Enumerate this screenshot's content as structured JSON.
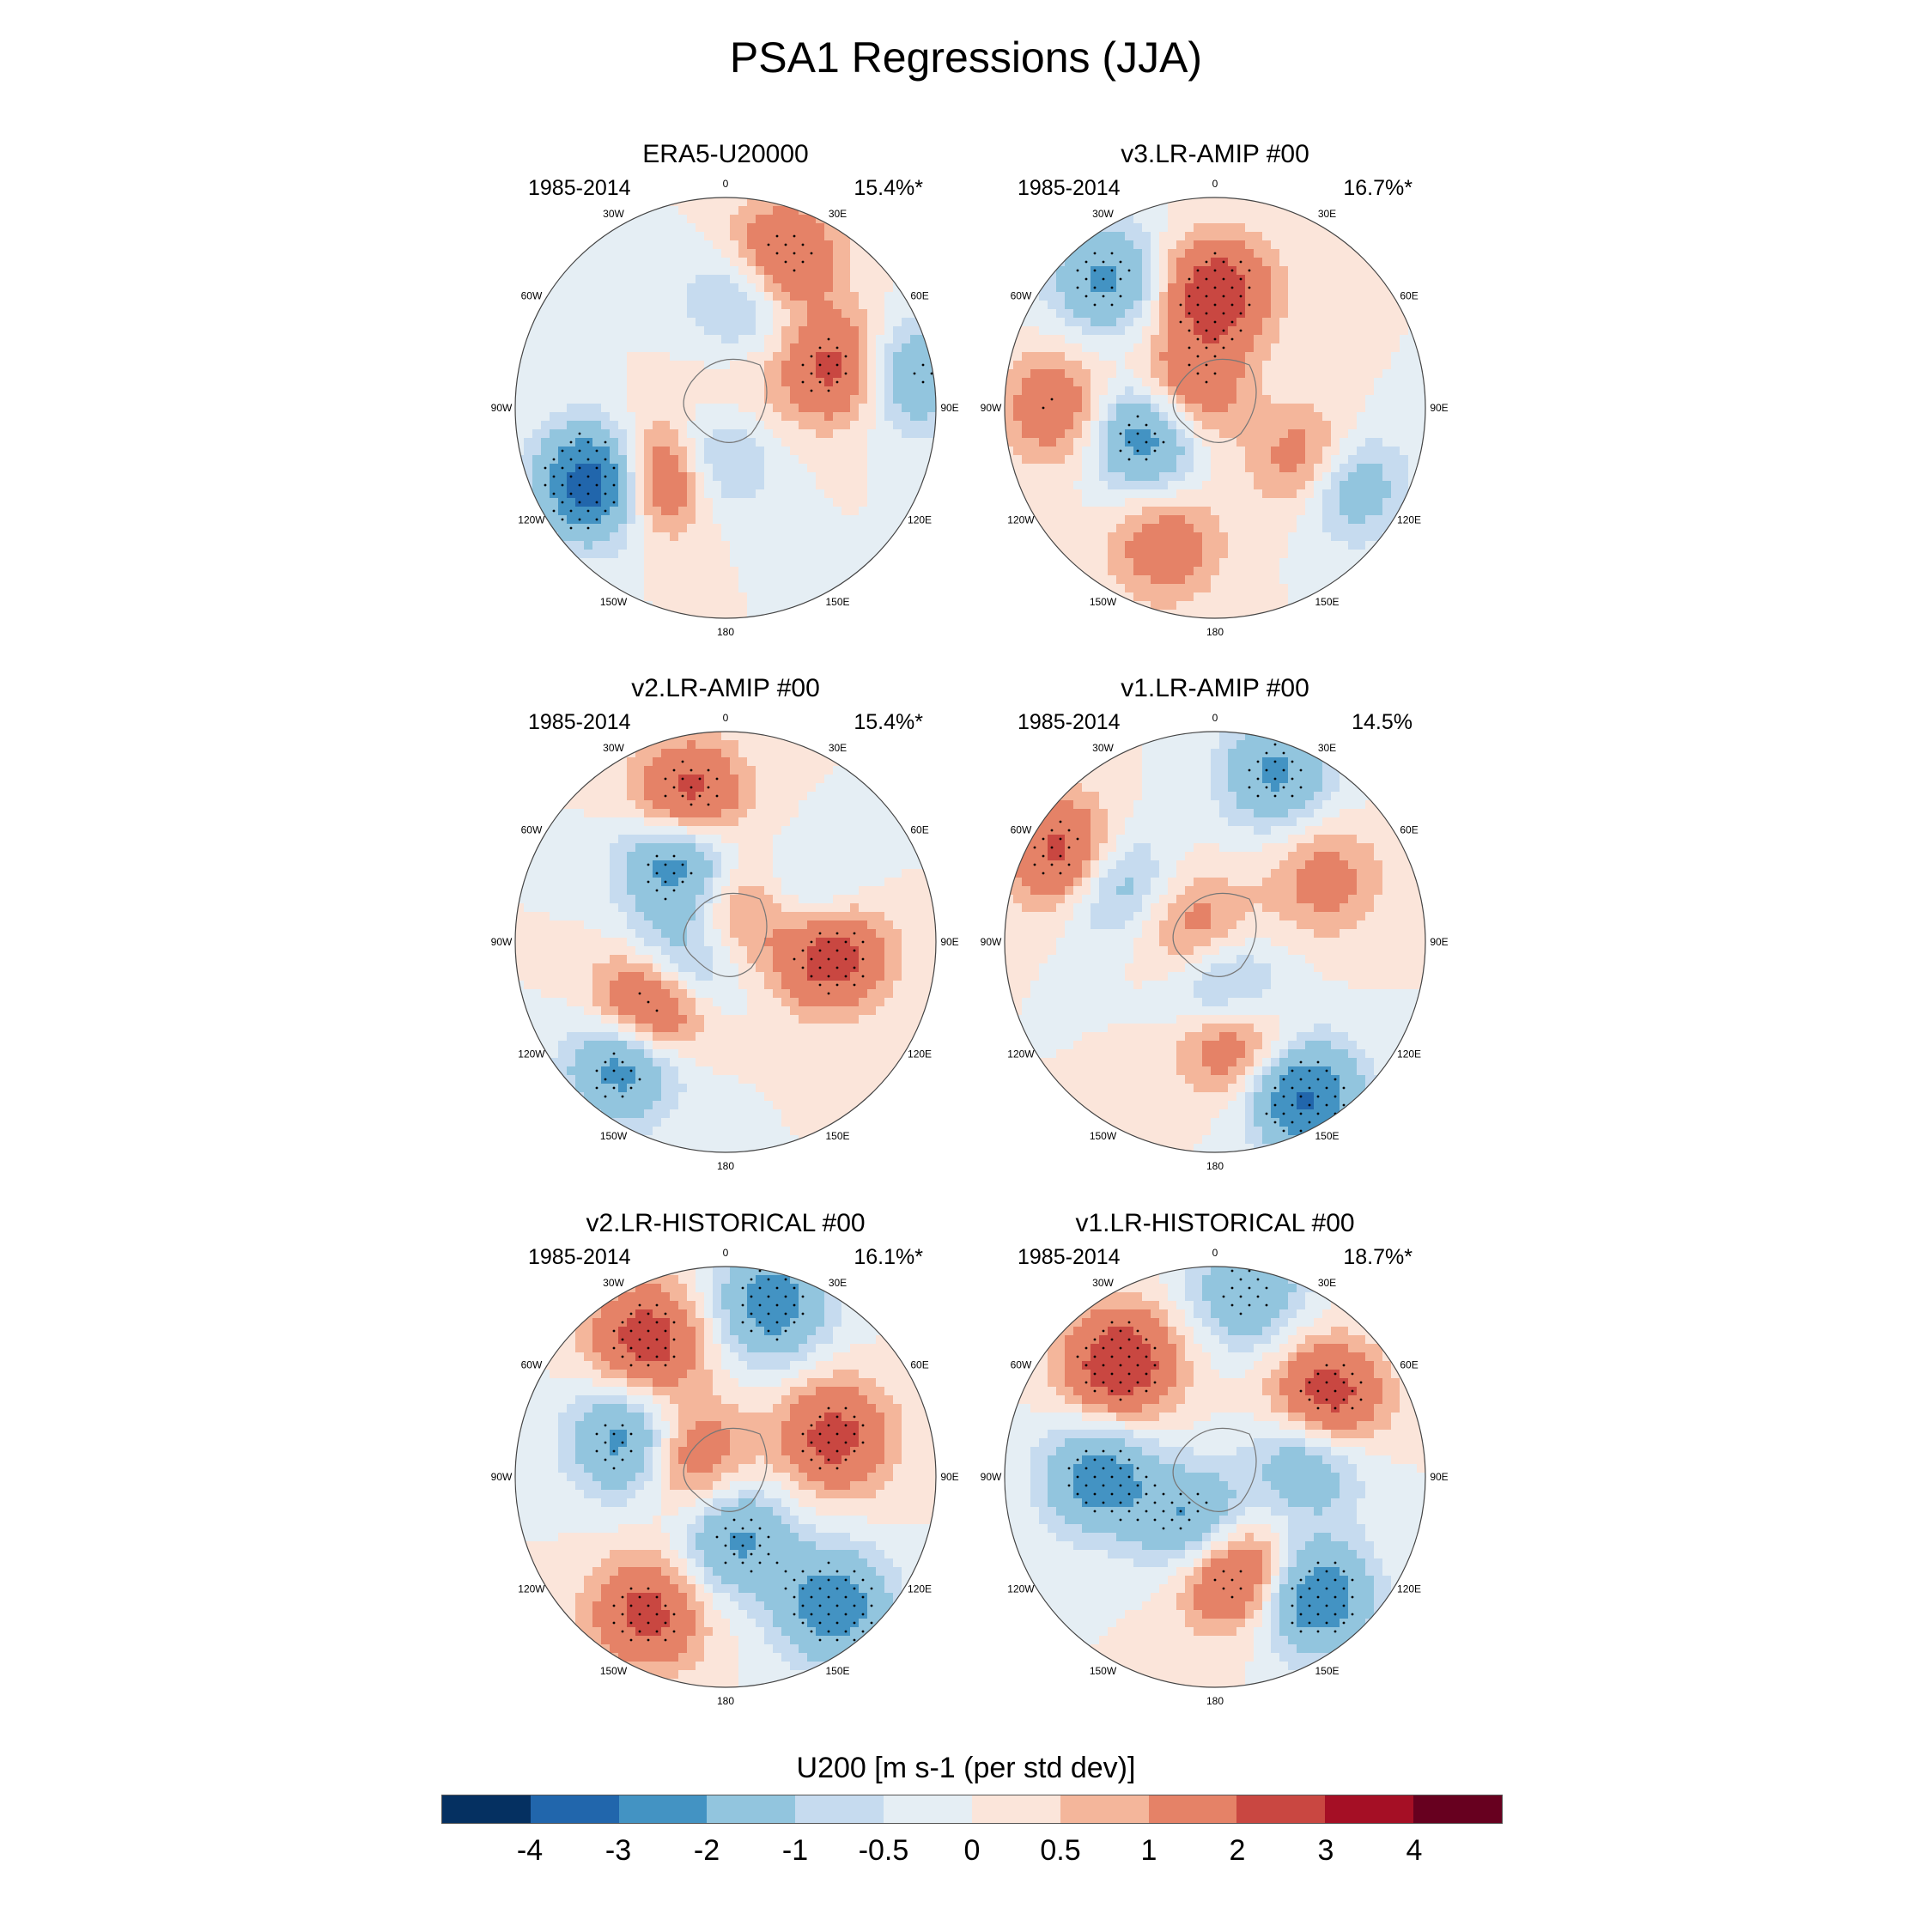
{
  "title": "PSA1 Regressions (JJA)",
  "panels": [
    {
      "name": "ERA5-U20000",
      "period": "1985-2014",
      "pct": "15.4%*",
      "variant": 0
    },
    {
      "name": "v3.LR-AMIP  #00",
      "period": "1985-2014",
      "pct": "16.7%*",
      "variant": 1
    },
    {
      "name": "v2.LR-AMIP  #00",
      "period": "1985-2014",
      "pct": "15.4%*",
      "variant": 2
    },
    {
      "name": "v1.LR-AMIP  #00",
      "period": "1985-2014",
      "pct": "14.5%",
      "variant": 3
    },
    {
      "name": "v2.LR-HISTORICAL  #00",
      "period": "1985-2014",
      "pct": "16.1%*",
      "variant": 4
    },
    {
      "name": "v1.LR-HISTORICAL  #00",
      "period": "1985-2014",
      "pct": "18.7%*",
      "variant": 5
    }
  ],
  "longitude_labels": [
    "0",
    "30E",
    "60E",
    "90E",
    "120E",
    "150E",
    "180",
    "150W",
    "120W",
    "90W",
    "60W",
    "30W"
  ],
  "colorbar": {
    "title": "U200 [m s-1 (per std dev)]",
    "colors": [
      "#053061",
      "#2166ac",
      "#4393c3",
      "#92c5de",
      "#c6dbef",
      "#e5eef4",
      "#fbe5da",
      "#f4b69b",
      "#e58267",
      "#c94741",
      "#a50f25",
      "#67001f"
    ],
    "tick_labels": [
      "-4",
      "-3",
      "-2",
      "-1",
      "-0.5",
      "0",
      "0.5",
      "1",
      "2",
      "3",
      "4"
    ]
  }
}
